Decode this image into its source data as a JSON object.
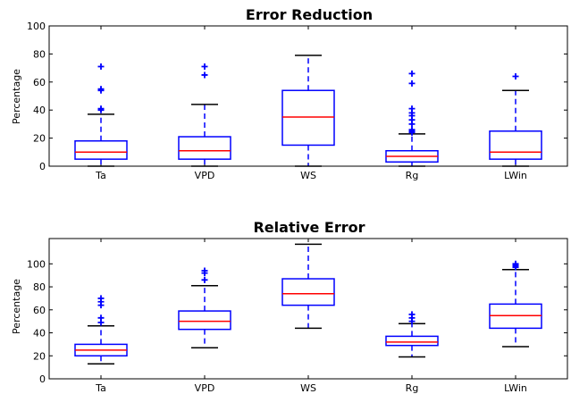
{
  "chart_data": [
    {
      "type": "box",
      "title": "Error Reduction",
      "xlabel": "",
      "ylabel": "Percentage",
      "ylim": [
        0,
        100
      ],
      "yticks": [
        0,
        20,
        40,
        60,
        80,
        100
      ],
      "categories": [
        "Ta",
        "VPD",
        "WS",
        "Rg",
        "LWin"
      ],
      "boxes": [
        {
          "whisker_low": 0,
          "q1": 5,
          "median": 10,
          "q3": 18,
          "whisker_high": 37,
          "outliers": [
            40,
            41,
            54,
            55,
            71
          ]
        },
        {
          "whisker_low": 0,
          "q1": 5,
          "median": 11,
          "q3": 21,
          "whisker_high": 44,
          "outliers": [
            65,
            71
          ]
        },
        {
          "whisker_low": 0,
          "q1": 15,
          "median": 35,
          "q3": 54,
          "whisker_high": 79,
          "outliers": []
        },
        {
          "whisker_low": 0,
          "q1": 3,
          "median": 7,
          "q3": 11,
          "whisker_high": 23,
          "outliers": [
            24,
            25,
            26,
            30,
            33,
            36,
            38,
            41,
            59,
            66
          ]
        },
        {
          "whisker_low": 0,
          "q1": 5,
          "median": 10,
          "q3": 25,
          "whisker_high": 54,
          "outliers": [
            64
          ]
        }
      ],
      "colors": {
        "box": "#0000ff",
        "median": "#ff0000",
        "whisker": "#0000ff",
        "cap": "#000000",
        "outlier": "#0000ff"
      },
      "grid": false
    },
    {
      "type": "box",
      "title": "Relative Error",
      "xlabel": "",
      "ylabel": "Percentage",
      "ylim": [
        0,
        122
      ],
      "yticks": [
        0,
        20,
        40,
        60,
        80,
        100
      ],
      "categories": [
        "Ta",
        "VPD",
        "WS",
        "Rg",
        "LWin"
      ],
      "boxes": [
        {
          "whisker_low": 13,
          "q1": 20,
          "median": 25,
          "q3": 30,
          "whisker_high": 46,
          "outliers": [
            49,
            53,
            64,
            67,
            70
          ]
        },
        {
          "whisker_low": 27,
          "q1": 43,
          "median": 50,
          "q3": 59,
          "whisker_high": 81,
          "outliers": [
            86,
            92,
            94
          ]
        },
        {
          "whisker_low": 44,
          "q1": 64,
          "median": 74,
          "q3": 87,
          "whisker_high": 117,
          "outliers": []
        },
        {
          "whisker_low": 19,
          "q1": 29,
          "median": 32,
          "q3": 37,
          "whisker_high": 48,
          "outliers": [
            50,
            53,
            56
          ]
        },
        {
          "whisker_low": 28,
          "q1": 44,
          "median": 55,
          "q3": 65,
          "whisker_high": 95,
          "outliers": [
            97,
            98,
            99,
            100
          ]
        }
      ],
      "colors": {
        "box": "#0000ff",
        "median": "#ff0000",
        "whisker": "#0000ff",
        "cap": "#000000",
        "outlier": "#0000ff"
      },
      "grid": false
    }
  ]
}
